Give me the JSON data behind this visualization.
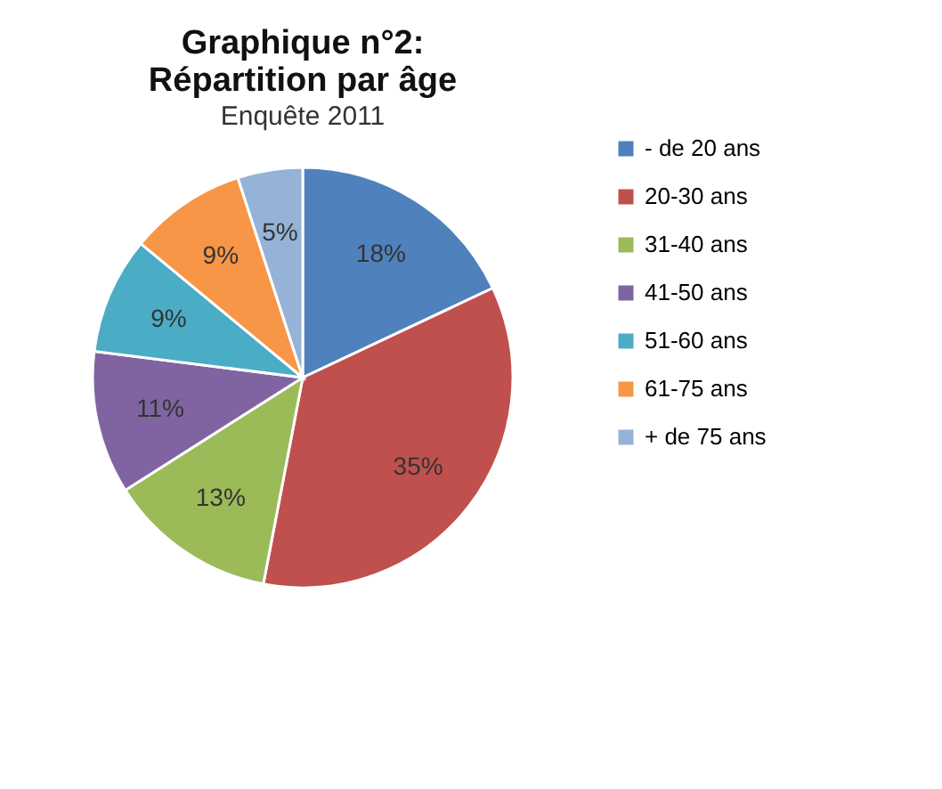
{
  "chart_data": {
    "type": "pie",
    "title": [
      "Graphique n°2:",
      "Répartition par âge"
    ],
    "subtitle": "Enquête 2011",
    "categories": [
      "- de 20 ans",
      "20-30 ans",
      "31-40 ans",
      "41-50 ans",
      "51-60 ans",
      "61-75 ans",
      "+ de 75 ans"
    ],
    "values": [
      18,
      35,
      13,
      11,
      9,
      9,
      5
    ],
    "colors": [
      "#4f81bd",
      "#c0504d",
      "#9bbb59",
      "#8064a2",
      "#4bacc6",
      "#f79646",
      "#95b3d7"
    ],
    "value_labels": [
      "18%",
      "35%",
      "13%",
      "11%",
      "9%",
      "9%",
      "5%"
    ],
    "legend": "right"
  }
}
